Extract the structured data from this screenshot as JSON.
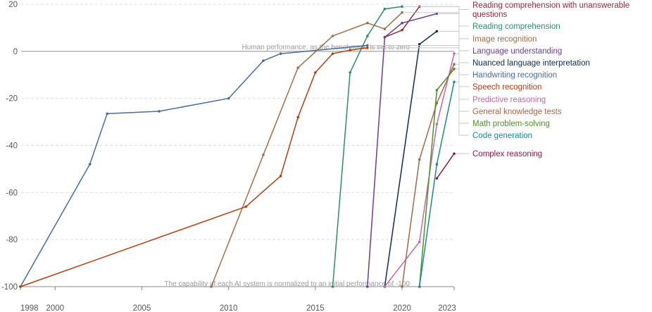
{
  "chart_data": {
    "type": "line",
    "title": "",
    "xlabel": "",
    "ylabel": "",
    "xlim": [
      1998,
      2023
    ],
    "ylim": [
      -100,
      20
    ],
    "x_ticks": [
      "1998",
      "2000",
      "2005",
      "2010",
      "2015",
      "2020",
      "2023"
    ],
    "y_ticks": [
      "20",
      "0",
      "-20",
      "-40",
      "-60",
      "-80",
      "-100"
    ],
    "grid": "horizontal dashed",
    "legend_position": "right",
    "annotations": {
      "human_line": "Human performance, as the benchmark, is set to zero",
      "baseline": "The capability of each AI system is normalized to an initial performance of -100"
    },
    "series": [
      {
        "name": "Reading comprehension with unanswerable questions",
        "color": "#8c2d3a",
        "x": [
          2019.0,
          2020.0,
          2021.0
        ],
        "y": [
          6.0,
          9.0,
          19.0
        ]
      },
      {
        "name": "Reading comprehension",
        "color": "#2e8b6a",
        "x": [
          2016.0,
          2017.0,
          2018.0,
          2019.0,
          2020.0
        ],
        "y": [
          -100,
          -9,
          6.5,
          18.0,
          19.0
        ]
      },
      {
        "name": "Image recognition",
        "color": "#9c7048",
        "x": [
          2009.0,
          2012.0,
          2014.0,
          2016.0,
          2018.0,
          2019.0,
          2020.0
        ],
        "y": [
          -100,
          -44,
          -7,
          6.5,
          12,
          9.5,
          16.5
        ]
      },
      {
        "name": "Language understanding",
        "color": "#6b3d8f",
        "x": [
          2018.0,
          2019.0,
          2020.0,
          2022.0
        ],
        "y": [
          -100,
          6,
          12,
          16
        ]
      },
      {
        "name": "Nuanced language interpretation",
        "color": "#102a4c",
        "x": [
          2019.0,
          2021.0,
          2022.0
        ],
        "y": [
          -100,
          3,
          8.5
        ]
      },
      {
        "name": "Handwriting recognition",
        "color": "#4c6a9c",
        "x": [
          1998.0,
          2002.0,
          2003.0,
          2006.0,
          2010.0,
          2012.0,
          2013.0,
          2018.0
        ],
        "y": [
          -100,
          -48,
          -26.5,
          -25.5,
          -20,
          -4,
          -1,
          2.5
        ]
      },
      {
        "name": "Speech recognition",
        "color": "#b13f12",
        "x": [
          1998.0,
          2011.0,
          2013.0,
          2014.0,
          2015.0,
          2016.0,
          2017.0,
          2018.0
        ],
        "y": [
          -100,
          -66,
          -53,
          -28,
          -9,
          -1,
          0.5,
          1.5
        ]
      },
      {
        "name": "Predictive reasoning",
        "color": "#bc6ab0",
        "x": [
          2019.0,
          2021.0,
          2022.0,
          2023.0
        ],
        "y": [
          -100,
          -81,
          -31,
          -1
        ]
      },
      {
        "name": "General knowledge tests",
        "color": "#a0694b",
        "x": [
          2020.0,
          2021.0,
          2022.0,
          2023.0
        ],
        "y": [
          -100,
          -46,
          -22,
          -5.5
        ]
      },
      {
        "name": "Math problem-solving",
        "color": "#4f8f2a",
        "x": [
          2021.0,
          2022.0,
          2023.0
        ],
        "y": [
          -100,
          -16.5,
          -7.5
        ]
      },
      {
        "name": "Code generation",
        "color": "#1b8a8d",
        "x": [
          2021.0,
          2022.0,
          2023.0
        ],
        "y": [
          -100,
          -48,
          -13
        ]
      },
      {
        "name": "Complex reasoning",
        "color": "#8a1b4a",
        "x": [
          2022.0,
          2023.0
        ],
        "y": [
          -54,
          -43.5
        ]
      }
    ]
  }
}
